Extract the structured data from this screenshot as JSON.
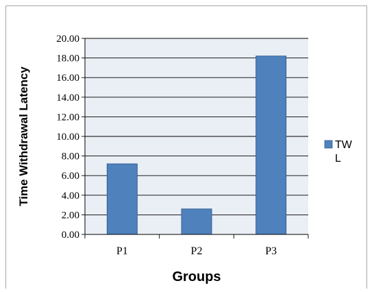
{
  "chart_data": {
    "type": "bar",
    "categories": [
      "P1",
      "P2",
      "P3"
    ],
    "series": [
      {
        "name": "TWL",
        "values": [
          7.2,
          2.6,
          18.2
        ]
      }
    ],
    "title": "",
    "xlabel": "Groups",
    "ylabel": "Time Withdrawal Latency",
    "ylim": [
      0,
      20
    ],
    "yticks": [
      "0.00",
      "2.00",
      "4.00",
      "6.00",
      "8.00",
      "10.00",
      "12.00",
      "14.00",
      "16.00",
      "18.00",
      "20.00"
    ],
    "grid": true,
    "legend_position": "right",
    "legend_lines": [
      "TW",
      "L"
    ],
    "colors": {
      "bar_fill": "#4F81BD",
      "bar_stroke": "#2C5A8C",
      "plot_background": "#EAEEF5",
      "gridline": "#000000",
      "frame_border": "#A6A6A6"
    }
  }
}
